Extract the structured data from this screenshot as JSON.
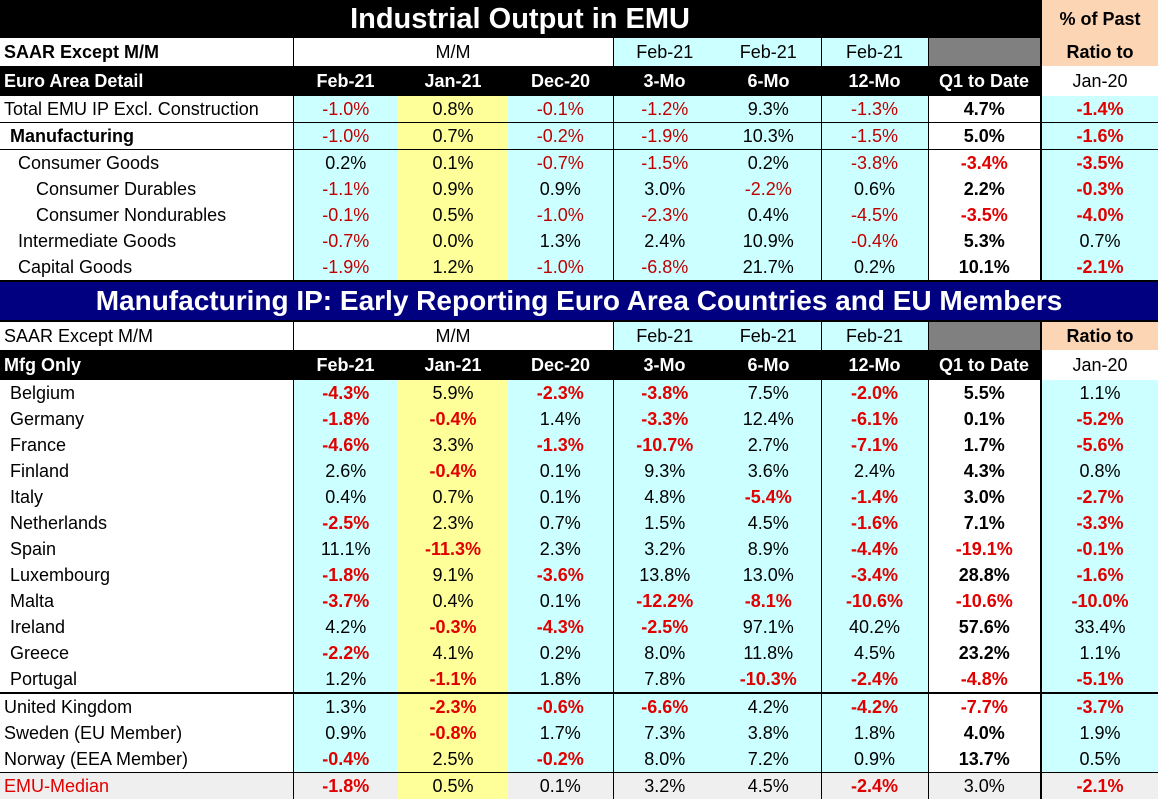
{
  "section1": {
    "title": "Industrial Output in EMU",
    "corner_top": "% of Past",
    "hdr1": [
      "SAAR Except M/M",
      "M/M",
      "Feb-21",
      "Feb-21",
      "Feb-21",
      "Ratio to"
    ],
    "hdr2": [
      "Euro Area Detail",
      "Feb-21",
      "Jan-21",
      "Dec-20",
      "3-Mo",
      "6-Mo",
      "12-Mo",
      "Q1 to Date",
      "Jan-20"
    ],
    "rows": [
      {
        "label": "Total EMU IP Excl. Construction",
        "v": [
          "-1.0%",
          "0.8%",
          "-0.1%",
          "-1.2%",
          "9.3%",
          "-1.3%",
          "4.7%",
          "-1.4%"
        ]
      },
      {
        "label": "Manufacturing",
        "v": [
          "-1.0%",
          "0.7%",
          "-0.2%",
          "-1.9%",
          "10.3%",
          "-1.5%",
          "5.0%",
          "-1.6%"
        ]
      },
      {
        "label": "Consumer Goods",
        "v": [
          "0.2%",
          "0.1%",
          "-0.7%",
          "-1.5%",
          "0.2%",
          "-3.8%",
          "-3.4%",
          "-3.5%"
        ]
      },
      {
        "label": "Consumer Durables",
        "v": [
          "-1.1%",
          "0.9%",
          "0.9%",
          "3.0%",
          "-2.2%",
          "0.6%",
          "2.2%",
          "-0.3%"
        ]
      },
      {
        "label": "Consumer Nondurables",
        "v": [
          "-0.1%",
          "0.5%",
          "-1.0%",
          "-2.3%",
          "0.4%",
          "-4.5%",
          "-3.5%",
          "-4.0%"
        ]
      },
      {
        "label": "Intermediate Goods",
        "v": [
          "-0.7%",
          "0.0%",
          "1.3%",
          "2.4%",
          "10.9%",
          "-0.4%",
          "5.3%",
          "0.7%"
        ]
      },
      {
        "label": "Capital Goods",
        "v": [
          "-1.9%",
          "1.2%",
          "-1.0%",
          "-6.8%",
          "21.7%",
          "0.2%",
          "10.1%",
          "-2.1%"
        ]
      }
    ]
  },
  "section2": {
    "title": "Manufacturing IP: Early Reporting Euro Area Countries and EU Members",
    "hdr1": [
      "SAAR Except M/M",
      "M/M",
      "Feb-21",
      "Feb-21",
      "Feb-21",
      "Ratio to"
    ],
    "hdr2": [
      "Mfg Only",
      "Feb-21",
      "Jan-21",
      "Dec-20",
      "3-Mo",
      "6-Mo",
      "12-Mo",
      "Q1 to Date",
      "Jan-20"
    ],
    "rows": [
      {
        "label": "Belgium",
        "v": [
          "-4.3%",
          "5.9%",
          "-2.3%",
          "-3.8%",
          "7.5%",
          "-2.0%",
          "5.5%",
          "1.1%"
        ]
      },
      {
        "label": "Germany",
        "v": [
          "-1.8%",
          "-0.4%",
          "1.4%",
          "-3.3%",
          "12.4%",
          "-6.1%",
          "0.1%",
          "-5.2%"
        ]
      },
      {
        "label": "France",
        "v": [
          "-4.6%",
          "3.3%",
          "-1.3%",
          "-10.7%",
          "2.7%",
          "-7.1%",
          "1.7%",
          "-5.6%"
        ]
      },
      {
        "label": "Finland",
        "v": [
          "2.6%",
          "-0.4%",
          "0.1%",
          "9.3%",
          "3.6%",
          "2.4%",
          "4.3%",
          "0.8%"
        ]
      },
      {
        "label": "Italy",
        "v": [
          "0.4%",
          "0.7%",
          "0.1%",
          "4.8%",
          "-5.4%",
          "-1.4%",
          "3.0%",
          "-2.7%"
        ]
      },
      {
        "label": "Netherlands",
        "v": [
          "-2.5%",
          "2.3%",
          "0.7%",
          "1.5%",
          "4.5%",
          "-1.6%",
          "7.1%",
          "-3.3%"
        ]
      },
      {
        "label": "Spain",
        "v": [
          "11.1%",
          "-11.3%",
          "2.3%",
          "3.2%",
          "8.9%",
          "-4.4%",
          "-19.1%",
          "-0.1%"
        ]
      },
      {
        "label": "Luxembourg",
        "v": [
          "-1.8%",
          "9.1%",
          "-3.6%",
          "13.8%",
          "13.0%",
          "-3.4%",
          "28.8%",
          "-1.6%"
        ]
      },
      {
        "label": "Malta",
        "v": [
          "-3.7%",
          "0.4%",
          "0.1%",
          "-12.2%",
          "-8.1%",
          "-10.6%",
          "-10.6%",
          "-10.0%"
        ]
      },
      {
        "label": "Ireland",
        "v": [
          "4.2%",
          "-0.3%",
          "-4.3%",
          "-2.5%",
          "97.1%",
          "40.2%",
          "57.6%",
          "33.4%"
        ]
      },
      {
        "label": "Greece",
        "v": [
          "-2.2%",
          "4.1%",
          "0.2%",
          "8.0%",
          "11.8%",
          "4.5%",
          "23.2%",
          "1.1%"
        ]
      },
      {
        "label": "Portugal",
        "v": [
          "1.2%",
          "-1.1%",
          "1.8%",
          "7.8%",
          "-10.3%",
          "-2.4%",
          "-4.8%",
          "-5.1%"
        ]
      },
      {
        "label": "United Kingdom",
        "v": [
          "1.3%",
          "-2.3%",
          "-0.6%",
          "-6.6%",
          "4.2%",
          "-4.2%",
          "-7.7%",
          "-3.7%"
        ]
      },
      {
        "label": "Sweden (EU Member)",
        "v": [
          "0.9%",
          "-0.8%",
          "1.7%",
          "7.3%",
          "3.8%",
          "1.8%",
          "4.0%",
          "1.9%"
        ]
      },
      {
        "label": "Norway (EEA Member)",
        "v": [
          "-0.4%",
          "2.5%",
          "-0.2%",
          "8.0%",
          "7.2%",
          "0.9%",
          "13.7%",
          "0.5%"
        ]
      }
    ],
    "median": {
      "label": "EMU-Median",
      "v": [
        "-1.8%",
        "0.5%",
        "0.1%",
        "3.2%",
        "4.5%",
        "-2.4%",
        "3.0%",
        "-2.1%"
      ]
    }
  },
  "colors": {
    "negative": "#c00000",
    "cyan": "#ccffff",
    "yellow": "#ffff99",
    "peach": "#fcd5b4",
    "navy": "#000080"
  },
  "chart_data": {
    "type": "table",
    "columns": [
      "Feb-21",
      "Jan-21",
      "Dec-20",
      "3-Mo",
      "6-Mo",
      "12-Mo",
      "Q1 to Date",
      "Jan-20"
    ],
    "tables": [
      {
        "title": "Industrial Output in EMU",
        "rows": "section1.rows"
      },
      {
        "title": "Manufacturing IP: Early Reporting Euro Area Countries and EU Members",
        "rows": "section2.rows"
      }
    ]
  }
}
